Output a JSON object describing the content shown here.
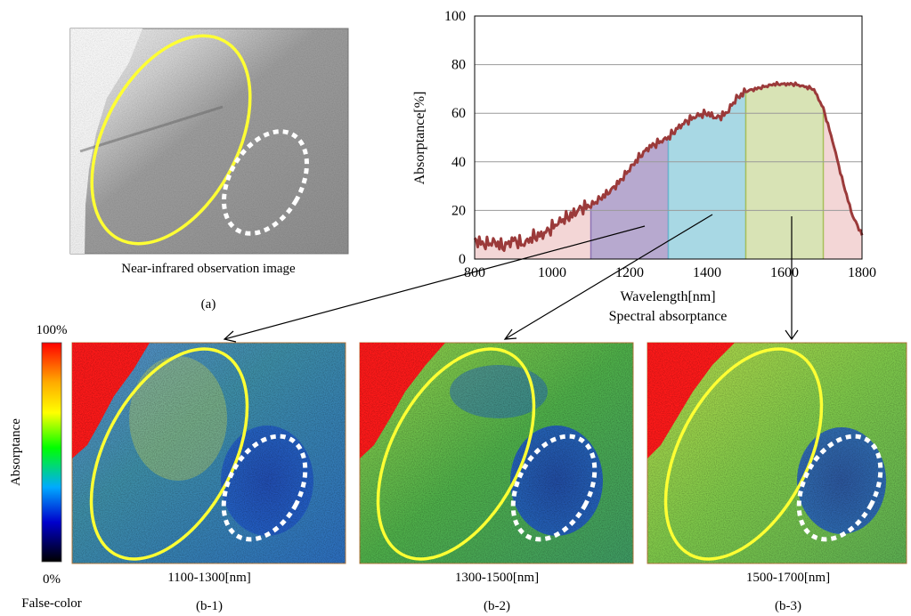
{
  "figure": {
    "nir_caption": "Near-infrared observation image",
    "label_a": "(a)",
    "colorbar": {
      "top": "100%",
      "bottom": "0%",
      "label": "Absorptance",
      "footer": "False-color"
    },
    "panels": [
      {
        "caption": "1100-1300[nm]",
        "label": "(b-1)"
      },
      {
        "caption": "1300-1500[nm]",
        "label": "(b-2)"
      },
      {
        "caption": "1500-1700[nm]",
        "label": "(b-3)"
      }
    ]
  },
  "chart_data": {
    "type": "line",
    "title": "",
    "xlabel": "Wavelength[nm]",
    "ylabel": "Absorptance[%]",
    "caption": "Spectral absorptance",
    "xlim": [
      800,
      1800
    ],
    "ylim": [
      0,
      100
    ],
    "xticks": [
      800,
      1000,
      1200,
      1400,
      1600,
      1800
    ],
    "yticks": [
      0,
      20,
      40,
      60,
      80,
      100
    ],
    "grid": true,
    "line_color": "#9b3a3a",
    "x": [
      800,
      825,
      850,
      875,
      900,
      925,
      950,
      975,
      1000,
      1025,
      1050,
      1075,
      1100,
      1125,
      1150,
      1175,
      1200,
      1225,
      1250,
      1275,
      1300,
      1325,
      1350,
      1375,
      1400,
      1425,
      1450,
      1475,
      1500,
      1525,
      1550,
      1575,
      1600,
      1625,
      1650,
      1675,
      1700,
      1725,
      1750,
      1775,
      1800
    ],
    "y": [
      8,
      6,
      7,
      5,
      8,
      6,
      9,
      10,
      13,
      16,
      18,
      21,
      22,
      25,
      28,
      32,
      37,
      42,
      46,
      48,
      50,
      54,
      57,
      59,
      60,
      58,
      60,
      66,
      69,
      70,
      71,
      72,
      72,
      72,
      71,
      70,
      62,
      48,
      32,
      18,
      10
    ],
    "bands": [
      {
        "name": "1100-1300[nm]",
        "from": 1100,
        "to": 1300,
        "color": "#b7a9cf",
        "edge": "#8c72b4"
      },
      {
        "name": "1300-1500[nm]",
        "from": 1300,
        "to": 1500,
        "color": "#a8d8e4",
        "edge": "#6cb6cf"
      },
      {
        "name": "1500-1700[nm]",
        "from": 1500,
        "to": 1700,
        "color": "#d8e3b5",
        "edge": "#a8bf5a"
      }
    ],
    "base_fill_color": "#f3d6d6"
  }
}
